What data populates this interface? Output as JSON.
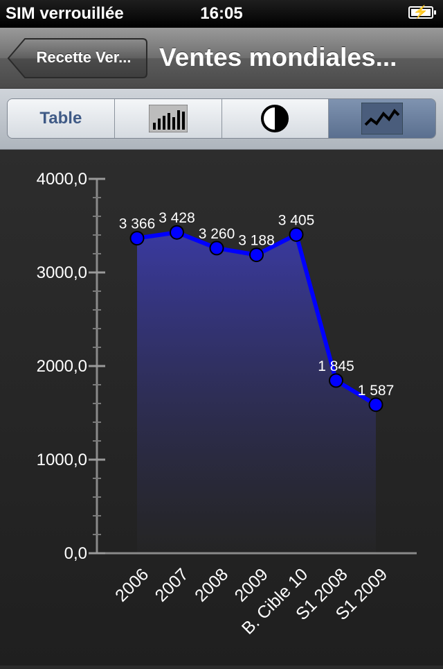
{
  "status_bar": {
    "carrier": "SIM verrouillée",
    "time": "16:05",
    "battery_level": 1.0
  },
  "nav": {
    "back_label": "Recette Ver...",
    "title": "Ventes mondiales..."
  },
  "segments": {
    "items": [
      {
        "label": "Table",
        "icon": "text"
      },
      {
        "label": "",
        "icon": "bar-chart-icon"
      },
      {
        "label": "",
        "icon": "pie-chart-icon"
      },
      {
        "label": "",
        "icon": "line-chart-icon"
      }
    ],
    "selected_index": 3
  },
  "colors": {
    "line": "#0000ff",
    "point": "#0000ff",
    "area_top": "#3a3aa0",
    "background": "#2b2b2b"
  },
  "chart_data": {
    "type": "line",
    "title": "",
    "xlabel": "",
    "ylabel": "",
    "categories": [
      "2006",
      "2007",
      "2008",
      "2009",
      "B. Cible 10",
      "S1 2008",
      "S1 2009"
    ],
    "values": [
      3366,
      3428,
      3260,
      3188,
      3405,
      1845,
      1587
    ],
    "data_labels": [
      "3 366",
      "3 428",
      "3 260",
      "3 188",
      "3 405",
      "1 845",
      "1 587"
    ],
    "yticks": [
      0,
      1000,
      2000,
      3000,
      4000
    ],
    "ytick_labels": [
      "0,0",
      "1000,0",
      "2000,0",
      "3000,0",
      "4000,0"
    ],
    "ylim": [
      0,
      4000
    ],
    "area_fill": true,
    "legend": "none"
  }
}
